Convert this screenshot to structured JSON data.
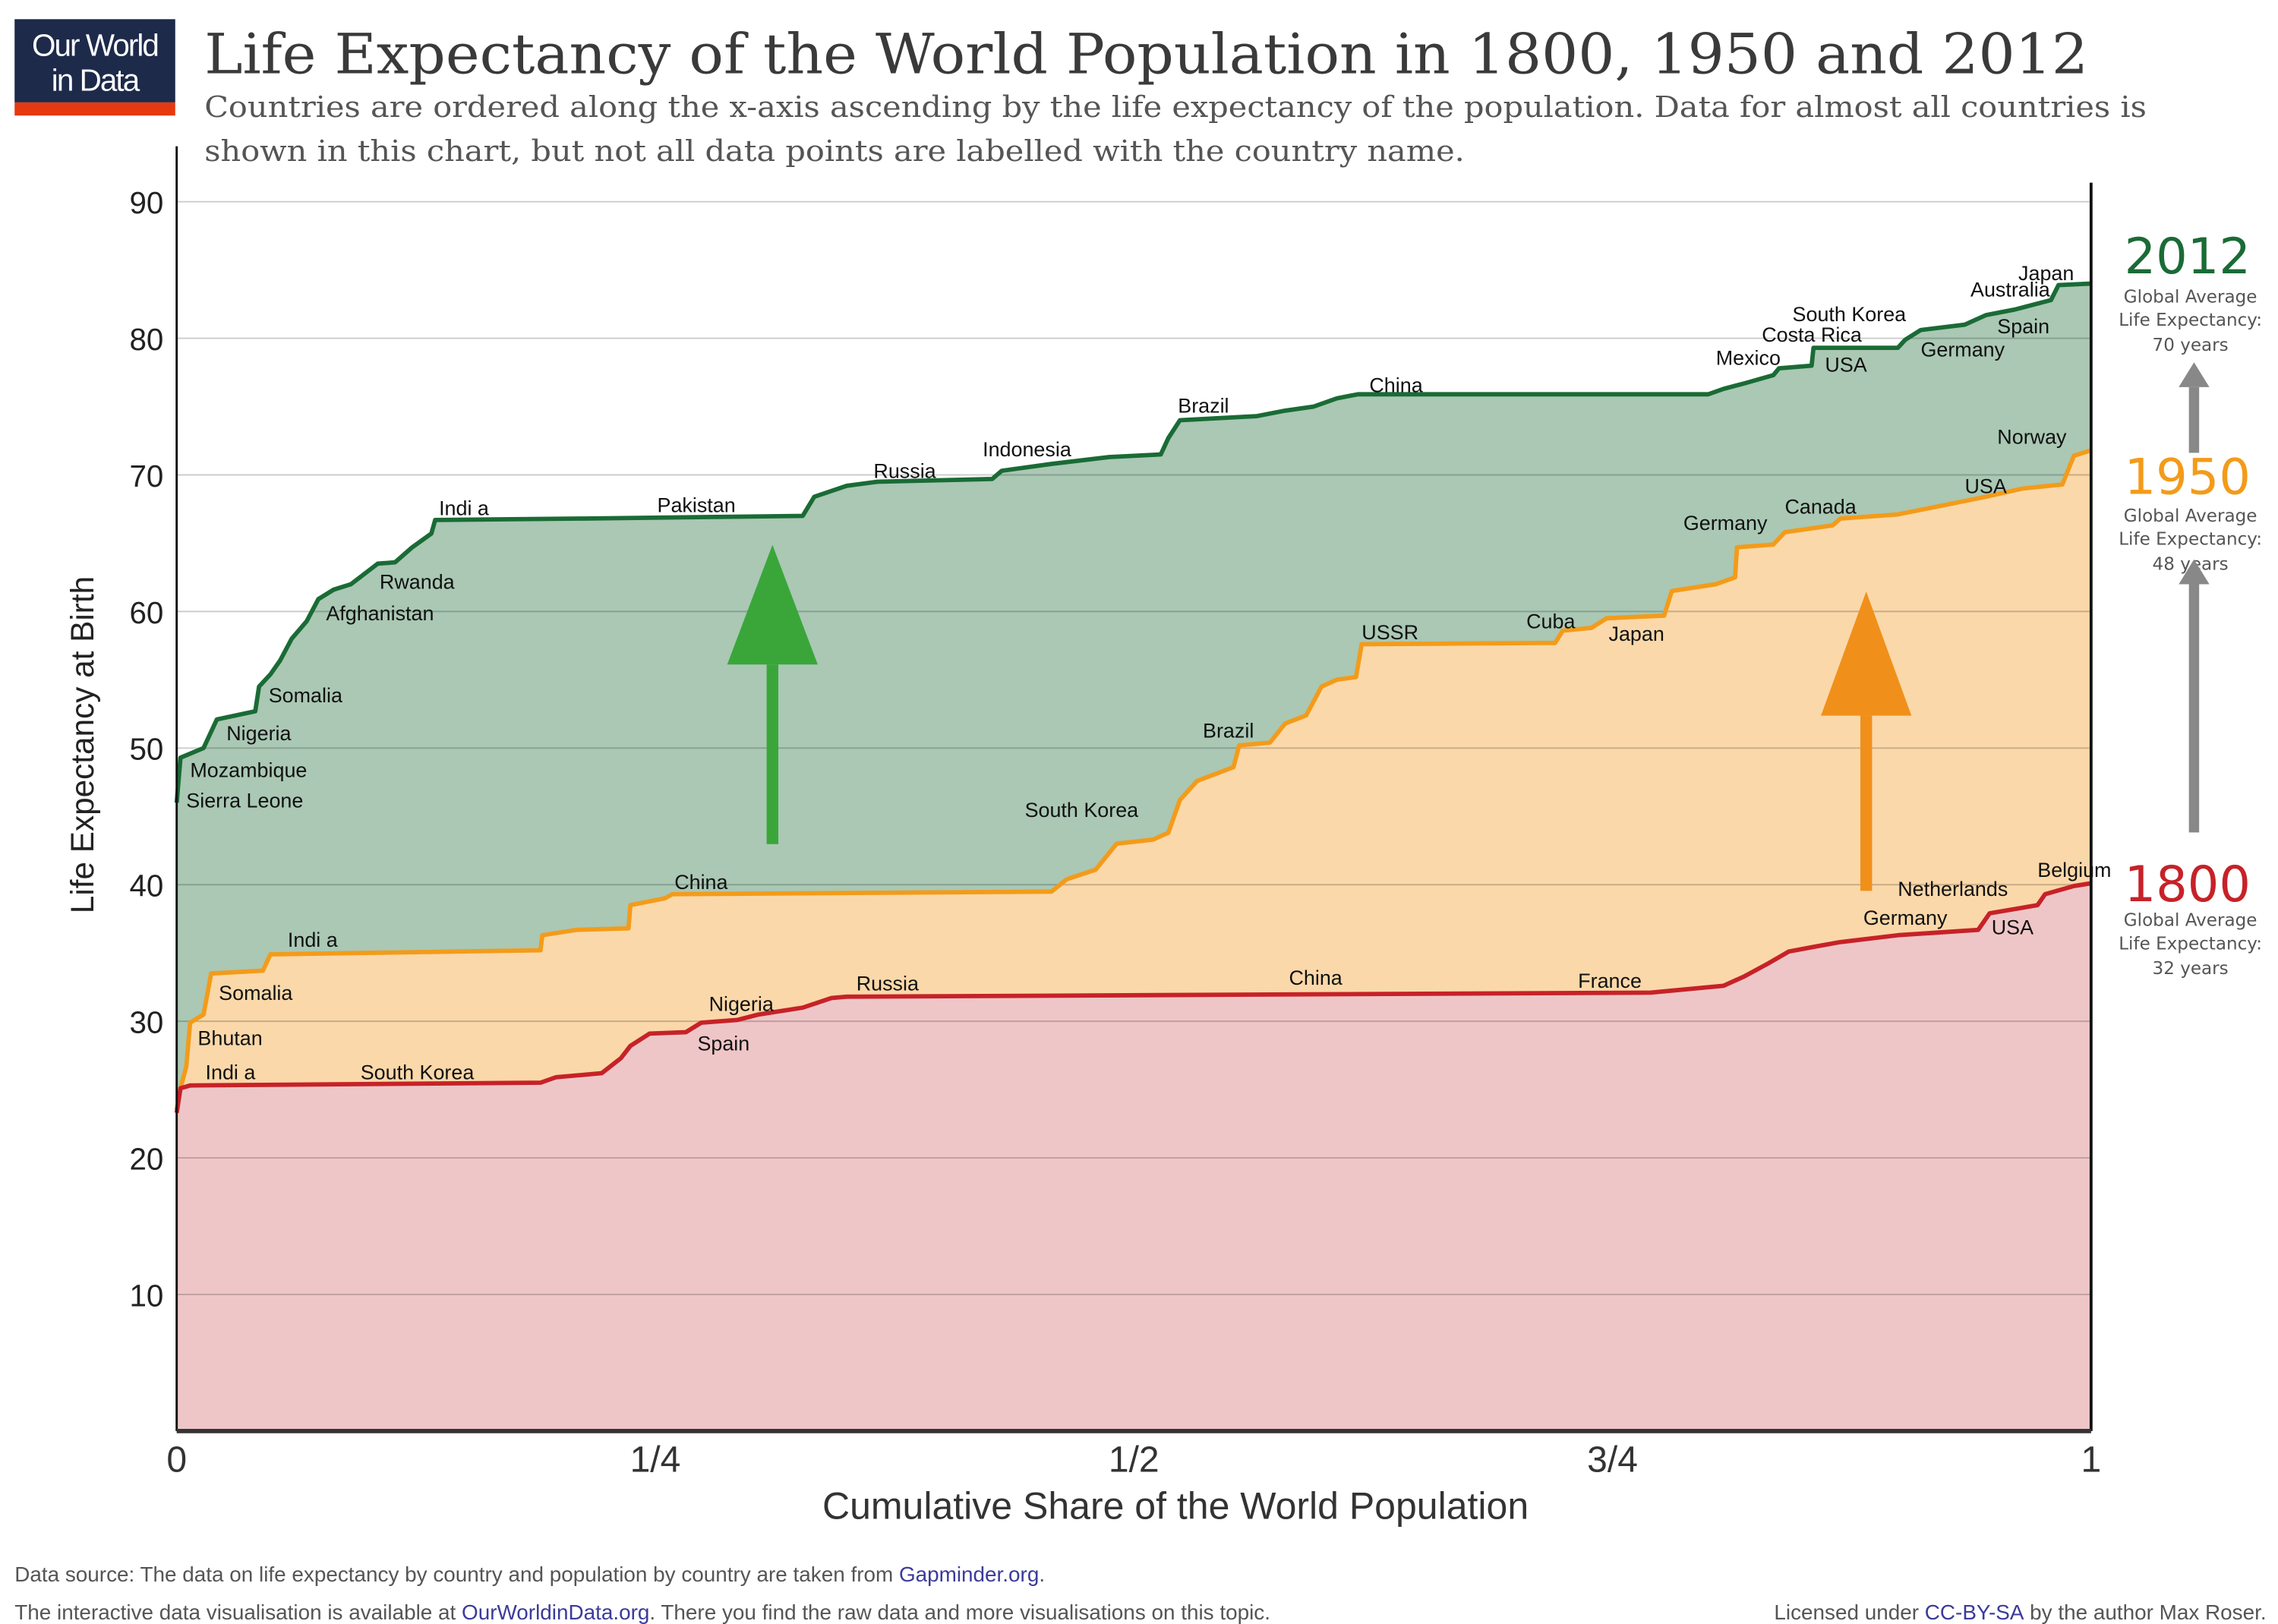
{
  "logo": {
    "line1": "Our World",
    "line2": "in Data"
  },
  "header": {
    "title": "Life Expectancy of the World Population in 1800, 1950 and 2012",
    "subtitle_line1": "Countries are ordered along the x-axis ascending by the life expectancy of the population. Data for almost all countries is",
    "subtitle_line2": "shown in this chart, but not all data points are labelled with the country name."
  },
  "colors": {
    "2012": "#1a6b35",
    "1950": "#f39b1a",
    "1800": "#c62228",
    "fill_2012": "#aac8b4",
    "fill_1950": "#fbd8a9",
    "fill_1800": "#efc6c8"
  },
  "side_panel": [
    {
      "year": "2012",
      "line1": "Global Average",
      "line2": "Life Expectancy:",
      "line3": "70 years"
    },
    {
      "year": "1950",
      "line1": "Global Average",
      "line2": "Life Expectancy:",
      "line3": "48 years"
    },
    {
      "year": "1800",
      "line1": "Global Average",
      "line2": "Life Expectancy:",
      "line3": "32 years"
    }
  ],
  "chart_data": {
    "type": "line",
    "xlabel": "Cumulative Share of the World Population",
    "ylabel": "Life Expectancy at Birth",
    "xlim": [
      0,
      1
    ],
    "ylim": [
      0,
      90
    ],
    "x_ticks": [
      {
        "value": 0,
        "label": "0"
      },
      {
        "value": 0.25,
        "label": "1/4"
      },
      {
        "value": 0.5,
        "label": "1/2"
      },
      {
        "value": 0.75,
        "label": "3/4"
      },
      {
        "value": 1,
        "label": "1"
      }
    ],
    "y_ticks": [
      10,
      20,
      30,
      40,
      50,
      60,
      70,
      80,
      90
    ],
    "grid": true,
    "series": [
      {
        "name": "2012",
        "points": [
          [
            0,
            46.0
          ],
          [
            0.002,
            49.3
          ],
          [
            0.014,
            50.0
          ],
          [
            0.021,
            52.1
          ],
          [
            0.041,
            52.7
          ],
          [
            0.043,
            54.5
          ],
          [
            0.049,
            55.4
          ],
          [
            0.054,
            56.4
          ],
          [
            0.06,
            58.0
          ],
          [
            0.068,
            59.3
          ],
          [
            0.074,
            60.9
          ],
          [
            0.082,
            61.6
          ],
          [
            0.091,
            62.0
          ],
          [
            0.105,
            63.5
          ],
          [
            0.114,
            63.6
          ],
          [
            0.123,
            64.7
          ],
          [
            0.133,
            65.7
          ],
          [
            0.135,
            66.7
          ],
          [
            0.213,
            66.8
          ],
          [
            0.327,
            67.0
          ],
          [
            0.333,
            68.4
          ],
          [
            0.35,
            69.2
          ],
          [
            0.366,
            69.5
          ],
          [
            0.426,
            69.7
          ],
          [
            0.431,
            70.3
          ],
          [
            0.457,
            70.8
          ],
          [
            0.487,
            71.3
          ],
          [
            0.514,
            71.5
          ],
          [
            0.518,
            72.7
          ],
          [
            0.524,
            74.0
          ],
          [
            0.564,
            74.3
          ],
          [
            0.579,
            74.7
          ],
          [
            0.594,
            75.0
          ],
          [
            0.606,
            75.6
          ],
          [
            0.617,
            75.9
          ],
          [
            0.8,
            75.9
          ],
          [
            0.808,
            76.3
          ],
          [
            0.819,
            76.7
          ],
          [
            0.834,
            77.3
          ],
          [
            0.837,
            77.8
          ],
          [
            0.854,
            78.0
          ],
          [
            0.855,
            79.3
          ],
          [
            0.899,
            79.3
          ],
          [
            0.903,
            79.9
          ],
          [
            0.911,
            80.6
          ],
          [
            0.934,
            81.0
          ],
          [
            0.945,
            81.7
          ],
          [
            0.96,
            82.1
          ],
          [
            0.979,
            82.8
          ],
          [
            0.983,
            83.9
          ],
          [
            1,
            84.0
          ]
        ]
      },
      {
        "name": "1950",
        "points": [
          [
            0,
            23.5
          ],
          [
            0.002,
            25.1
          ],
          [
            0.005,
            26.7
          ],
          [
            0.007,
            29.9
          ],
          [
            0.014,
            30.5
          ],
          [
            0.018,
            33.5
          ],
          [
            0.045,
            33.7
          ],
          [
            0.049,
            34.9
          ],
          [
            0.19,
            35.2
          ],
          [
            0.191,
            36.3
          ],
          [
            0.209,
            36.7
          ],
          [
            0.236,
            36.8
          ],
          [
            0.237,
            38.5
          ],
          [
            0.255,
            39.0
          ],
          [
            0.259,
            39.3
          ],
          [
            0.457,
            39.5
          ],
          [
            0.465,
            40.4
          ],
          [
            0.48,
            41.1
          ],
          [
            0.491,
            43.0
          ],
          [
            0.51,
            43.3
          ],
          [
            0.518,
            43.8
          ],
          [
            0.524,
            46.2
          ],
          [
            0.533,
            47.6
          ],
          [
            0.552,
            48.6
          ],
          [
            0.555,
            50.2
          ],
          [
            0.571,
            50.4
          ],
          [
            0.579,
            51.8
          ],
          [
            0.59,
            52.4
          ],
          [
            0.598,
            54.5
          ],
          [
            0.606,
            55.0
          ],
          [
            0.616,
            55.2
          ],
          [
            0.619,
            57.6
          ],
          [
            0.72,
            57.7
          ],
          [
            0.724,
            58.6
          ],
          [
            0.739,
            58.8
          ],
          [
            0.747,
            59.5
          ],
          [
            0.777,
            59.7
          ],
          [
            0.781,
            61.5
          ],
          [
            0.804,
            62.0
          ],
          [
            0.814,
            62.5
          ],
          [
            0.815,
            64.7
          ],
          [
            0.834,
            64.9
          ],
          [
            0.84,
            65.8
          ],
          [
            0.865,
            66.3
          ],
          [
            0.869,
            66.8
          ],
          [
            0.899,
            67.1
          ],
          [
            0.945,
            68.4
          ],
          [
            0.964,
            69.0
          ],
          [
            0.985,
            69.3
          ],
          [
            0.991,
            71.4
          ],
          [
            1,
            71.8
          ]
        ]
      },
      {
        "name": "1800",
        "points": [
          [
            0,
            23.3
          ],
          [
            0.002,
            25.1
          ],
          [
            0.007,
            25.3
          ],
          [
            0.19,
            25.5
          ],
          [
            0.198,
            25.9
          ],
          [
            0.222,
            26.2
          ],
          [
            0.232,
            27.3
          ],
          [
            0.237,
            28.2
          ],
          [
            0.247,
            29.1
          ],
          [
            0.266,
            29.2
          ],
          [
            0.274,
            29.9
          ],
          [
            0.293,
            30.1
          ],
          [
            0.304,
            30.5
          ],
          [
            0.327,
            31.0
          ],
          [
            0.342,
            31.7
          ],
          [
            0.35,
            31.8
          ],
          [
            0.77,
            32.1
          ],
          [
            0.808,
            32.6
          ],
          [
            0.819,
            33.3
          ],
          [
            0.831,
            34.2
          ],
          [
            0.842,
            35.1
          ],
          [
            0.857,
            35.5
          ],
          [
            0.869,
            35.8
          ],
          [
            0.899,
            36.3
          ],
          [
            0.941,
            36.7
          ],
          [
            0.947,
            37.9
          ],
          [
            0.972,
            38.5
          ],
          [
            0.976,
            39.3
          ],
          [
            0.991,
            39.9
          ],
          [
            1,
            40.1
          ]
        ]
      }
    ],
    "annotations": [
      {
        "series": "2012",
        "text": "Mozambique",
        "x": 0.007,
        "y": 48.4
      },
      {
        "series": "2012",
        "text": "Sierra Leone",
        "x": 0.005,
        "y": 46.2
      },
      {
        "series": "2012",
        "text": "Nigeria",
        "x": 0.026,
        "y": 51.1
      },
      {
        "series": "2012",
        "text": "Somalia",
        "x": 0.048,
        "y": 53.9
      },
      {
        "series": "2012",
        "text": "Afghanistan",
        "x": 0.078,
        "y": 59.9
      },
      {
        "series": "2012",
        "text": "Rwanda",
        "x": 0.106,
        "y": 62.2
      },
      {
        "series": "2012",
        "text": "Indi a",
        "x": 0.137,
        "y": 67.6
      },
      {
        "series": "2012",
        "text": "Pakistan",
        "x": 0.251,
        "y": 67.8
      },
      {
        "series": "2012",
        "text": "Russia",
        "x": 0.364,
        "y": 70.3
      },
      {
        "series": "2012",
        "text": "Indonesia",
        "x": 0.421,
        "y": 71.9
      },
      {
        "series": "2012",
        "text": "Brazil",
        "x": 0.523,
        "y": 75.1
      },
      {
        "series": "2012",
        "text": "China",
        "x": 0.623,
        "y": 76.6
      },
      {
        "series": "2012",
        "text": "Mexico",
        "x": 0.804,
        "y": 78.6
      },
      {
        "series": "2012",
        "text": "Costa Rica",
        "x": 0.828,
        "y": 80.3
      },
      {
        "series": "2012",
        "text": "South Korea",
        "x": 0.844,
        "y": 81.8
      },
      {
        "series": "2012",
        "text": "USA",
        "x": 0.861,
        "y": 78.1
      },
      {
        "series": "2012",
        "text": "Australia",
        "x": 0.937,
        "y": 83.6
      },
      {
        "series": "2012",
        "text": "Japan",
        "x": 0.962,
        "y": 84.8
      },
      {
        "series": "2012",
        "text": "Spain",
        "x": 0.951,
        "y": 80.9
      },
      {
        "series": "2012",
        "text": "Germany",
        "x": 0.911,
        "y": 79.2
      },
      {
        "series": "2012",
        "text": "Norway",
        "x": 0.951,
        "y": 72.8
      },
      {
        "series": "1950",
        "text": "Indi a",
        "x": 0.015,
        "y": 26.3
      },
      {
        "series": "1950",
        "text": "Bhutan",
        "x": 0.011,
        "y": 28.8
      },
      {
        "series": "1950",
        "text": "Somalia",
        "x": 0.022,
        "y": 32.1
      },
      {
        "series": "1950",
        "text": "Indi a",
        "x": 0.058,
        "y": 36.0
      },
      {
        "series": "1950",
        "text": "China",
        "x": 0.26,
        "y": 40.2
      },
      {
        "series": "1950",
        "text": "South Korea",
        "x": 0.443,
        "y": 45.5
      },
      {
        "series": "1950",
        "text": "Brazil",
        "x": 0.536,
        "y": 51.3
      },
      {
        "series": "1950",
        "text": "USSR",
        "x": 0.619,
        "y": 58.5
      },
      {
        "series": "1950",
        "text": "Cuba",
        "x": 0.705,
        "y": 59.3
      },
      {
        "series": "1950",
        "text": "Japan",
        "x": 0.748,
        "y": 58.4
      },
      {
        "series": "1950",
        "text": "Germany",
        "x": 0.787,
        "y": 66.5
      },
      {
        "series": "1950",
        "text": "Canada",
        "x": 0.84,
        "y": 67.7
      },
      {
        "series": "1950",
        "text": "USA",
        "x": 0.934,
        "y": 69.2
      },
      {
        "series": "1800",
        "text": "South Korea",
        "x": 0.096,
        "y": 26.3
      },
      {
        "series": "1800",
        "text": "Nigeria",
        "x": 0.278,
        "y": 31.3
      },
      {
        "series": "1800",
        "text": "Spain",
        "x": 0.272,
        "y": 28.4
      },
      {
        "series": "1800",
        "text": "Russia",
        "x": 0.355,
        "y": 32.8
      },
      {
        "series": "1800",
        "text": "China",
        "x": 0.581,
        "y": 33.2
      },
      {
        "series": "1800",
        "text": "France",
        "x": 0.732,
        "y": 33.0
      },
      {
        "series": "1800",
        "text": "Germany",
        "x": 0.881,
        "y": 37.6
      },
      {
        "series": "1800",
        "text": "Netherlands",
        "x": 0.899,
        "y": 39.7
      },
      {
        "series": "1800",
        "text": "USA",
        "x": 0.948,
        "y": 36.9
      },
      {
        "series": "1800",
        "text": "Belgium",
        "x": 0.972,
        "y": 41.1
      }
    ]
  },
  "footer": {
    "source_prefix": "Data source: The data on life expectancy by country and population by country are taken from ",
    "source_link": "Gapminder.org",
    "source_suffix": ".",
    "interactive_prefix": "The interactive data visualisation is available at ",
    "interactive_link": "OurWorldinData.org",
    "interactive_suffix": ". There you find the raw data and more visualisations on this topic.",
    "license_prefix": "Licensed under ",
    "license_link": "CC-BY-SA",
    "license_suffix": " by the author Max Roser."
  }
}
